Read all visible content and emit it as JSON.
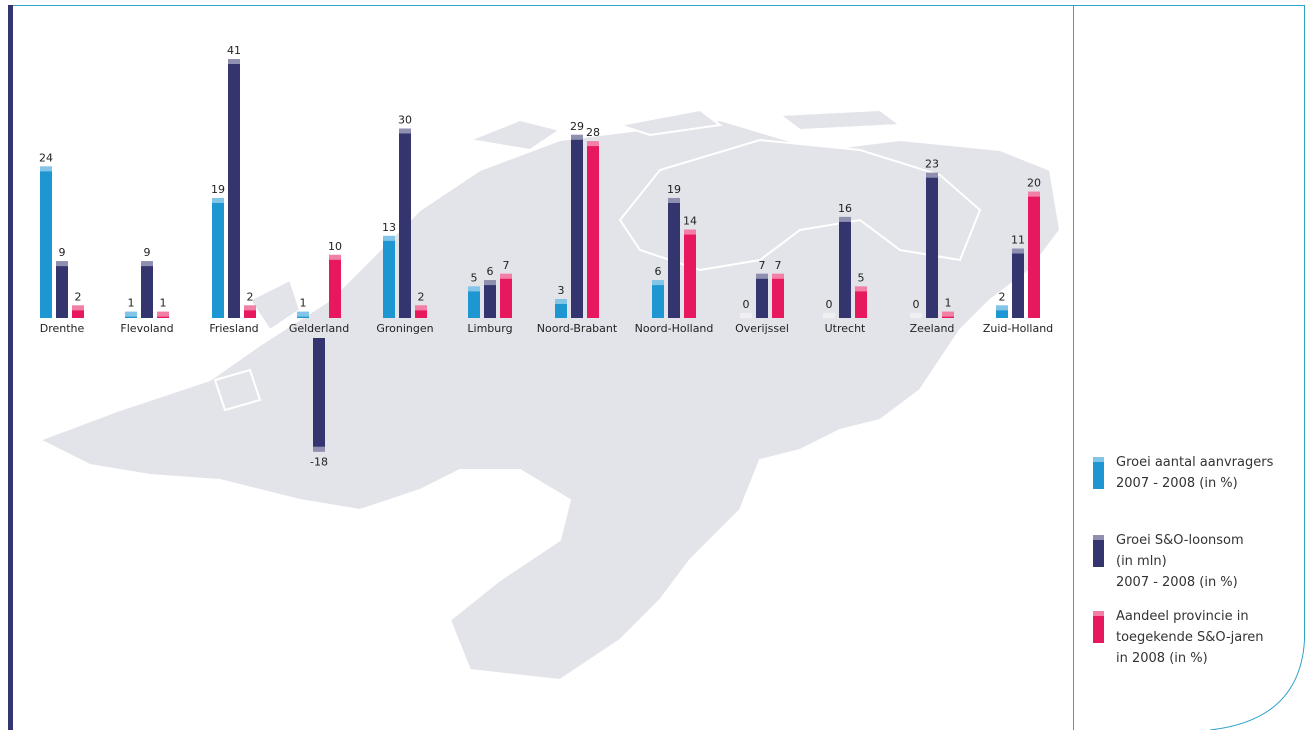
{
  "chart_data": {
    "type": "bar",
    "categories": [
      "Drenthe",
      "Flevoland",
      "Friesland",
      "Gelderland",
      "Groningen",
      "Limburg",
      "Noord-Brabant",
      "Noord-Holland",
      "Overijssel",
      "Utrecht",
      "Zeeland",
      "Zuid-Holland"
    ],
    "series": [
      {
        "name": "Groei aantal aanvragers\n2007 - 2008 (in %)",
        "color": "#1e96d2",
        "values": [
          24,
          1,
          19,
          1,
          13,
          5,
          3,
          6,
          0,
          0,
          0,
          2
        ]
      },
      {
        "name": "Groei S&O-loonsom\n(in mln)\n2007 - 2008 (in %)",
        "color": "#34356e",
        "values": [
          9,
          9,
          41,
          -18,
          30,
          6,
          29,
          19,
          7,
          16,
          23,
          11
        ]
      },
      {
        "name": "Aandeel provincie in\ntoegekende S&O-jaren\nin 2008 (in %)",
        "color": "#e8185e",
        "values": [
          2,
          1,
          2,
          10,
          2,
          7,
          28,
          14,
          7,
          5,
          1,
          20
        ]
      }
    ]
  }
}
